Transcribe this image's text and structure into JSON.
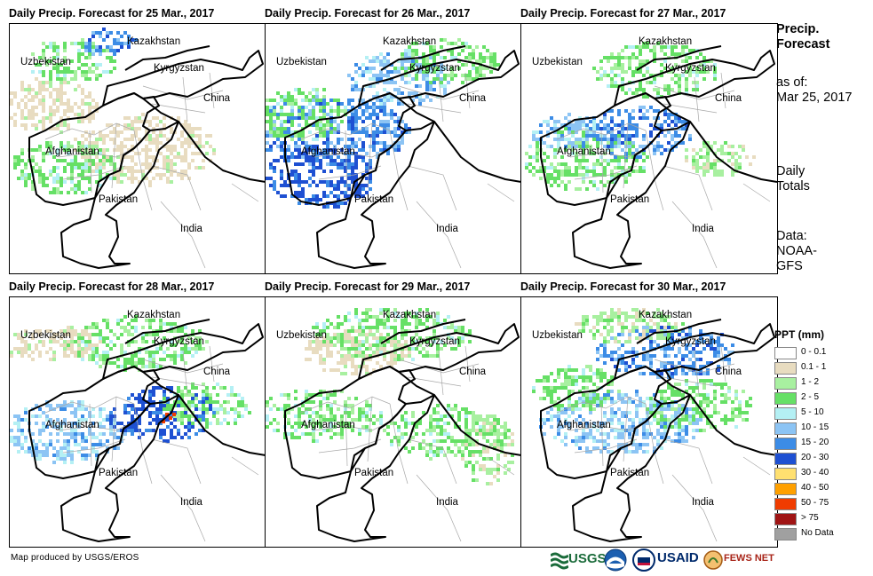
{
  "panels": [
    {
      "title": "Daily Precip. Forecast for 25 Mar., 2017"
    },
    {
      "title": "Daily Precip. Forecast for 26 Mar., 2017"
    },
    {
      "title": "Daily Precip. Forecast for 27 Mar., 2017"
    },
    {
      "title": "Daily Precip. Forecast for 28 Mar., 2017"
    },
    {
      "title": "Daily Precip. Forecast for 29 Mar., 2017"
    },
    {
      "title": "Daily Precip. Forecast for 30 Mar., 2017"
    }
  ],
  "map_labels": {
    "kazakhstan": "Kazakhstan",
    "uzbekistan": "Uzbekistan",
    "kyrgyzstan": "Kyrgyzstan",
    "china": "China",
    "afghanistan": "Afghanistan",
    "pakistan": "Pakistan",
    "india": "India"
  },
  "sidebar": {
    "title_line1": "Precip.",
    "title_line2": "Forecast",
    "asof_line1": "as of:",
    "asof_line2": "Mar 25, 2017",
    "totals_line1": "Daily",
    "totals_line2": "Totals",
    "data_line1": "Data:",
    "data_line2": "NOAA-",
    "data_line3": "GFS"
  },
  "legend": {
    "title": "PPT (mm)",
    "items": [
      {
        "label": "0 - 0.1",
        "color": "#ffffff"
      },
      {
        "label": "0.1 - 1",
        "color": "#e8dcc0"
      },
      {
        "label": "1 - 2",
        "color": "#a8f0a0"
      },
      {
        "label": "2 - 5",
        "color": "#66e066"
      },
      {
        "label": "5 - 10",
        "color": "#b4f0f4"
      },
      {
        "label": "10 - 15",
        "color": "#8cc4f4"
      },
      {
        "label": "15 - 20",
        "color": "#3c8ce6"
      },
      {
        "label": "20 - 30",
        "color": "#1e50d2"
      },
      {
        "label": "30 - 40",
        "color": "#ffe070"
      },
      {
        "label": "40 - 50",
        "color": "#ffa000"
      },
      {
        "label": "50 - 75",
        "color": "#f03c00"
      },
      {
        "label": "> 75",
        "color": "#a01414"
      },
      {
        "label": "No Data",
        "color": "#a0a0a0"
      }
    ]
  },
  "credit": "Map produced by USGS/EROS",
  "logos": {
    "usgs": "USGS",
    "usaid": "USAID",
    "fewsnet": "FEWS NET"
  }
}
